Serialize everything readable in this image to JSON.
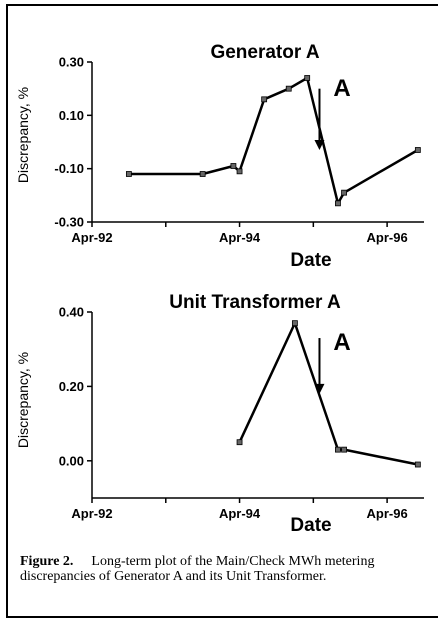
{
  "chart_data": [
    {
      "type": "line",
      "title": "Generator A",
      "xlabel": "Date",
      "ylabel": "Discrepancy, %",
      "x_tick_labels": [
        "Apr-92",
        "Apr-94",
        "Apr-96"
      ],
      "y_tick_labels": [
        "0.30",
        "0.10",
        "-0.10",
        "-0.30"
      ],
      "ylim": [
        -0.3,
        0.3
      ],
      "xlim": [
        "1992-04",
        "1996-10"
      ],
      "series": [
        {
          "x": [
            "1992-10",
            "1993-10",
            "1994-03",
            "1994-04",
            "1994-08",
            "1994-12",
            "1995-03",
            "1995-08",
            "1995-09",
            "1996-09"
          ],
          "y": [
            -0.12,
            -0.12,
            -0.09,
            -0.11,
            0.16,
            0.2,
            0.24,
            -0.23,
            -0.19,
            -0.03
          ]
        }
      ],
      "annotation": {
        "text": "A",
        "x": "1995-05",
        "y": 0.2,
        "arrow_to": -0.03
      },
      "grid": false
    },
    {
      "type": "line",
      "title": "Unit Transformer A",
      "xlabel": "Date",
      "ylabel": "Discrepancy, %",
      "x_tick_labels": [
        "Apr-92",
        "Apr-94",
        "Apr-96"
      ],
      "y_tick_labels": [
        "0.40",
        "0.20",
        "0.00"
      ],
      "ylim": [
        -0.1,
        0.4
      ],
      "xlim": [
        "1992-04",
        "1996-10"
      ],
      "series": [
        {
          "x": [
            "1994-04",
            "1995-01",
            "1995-08",
            "1995-09",
            "1996-09"
          ],
          "y": [
            0.05,
            0.37,
            0.03,
            0.03,
            -0.01
          ]
        }
      ],
      "annotation": {
        "text": "A",
        "x": "1995-05",
        "y": 0.33,
        "arrow_to": 0.18
      },
      "grid": false
    }
  ],
  "caption": {
    "label": "Figure 2.",
    "text": "Long-term plot of the Main/Check MWh metering discrepancies of Generator A and its Unit Transformer."
  }
}
